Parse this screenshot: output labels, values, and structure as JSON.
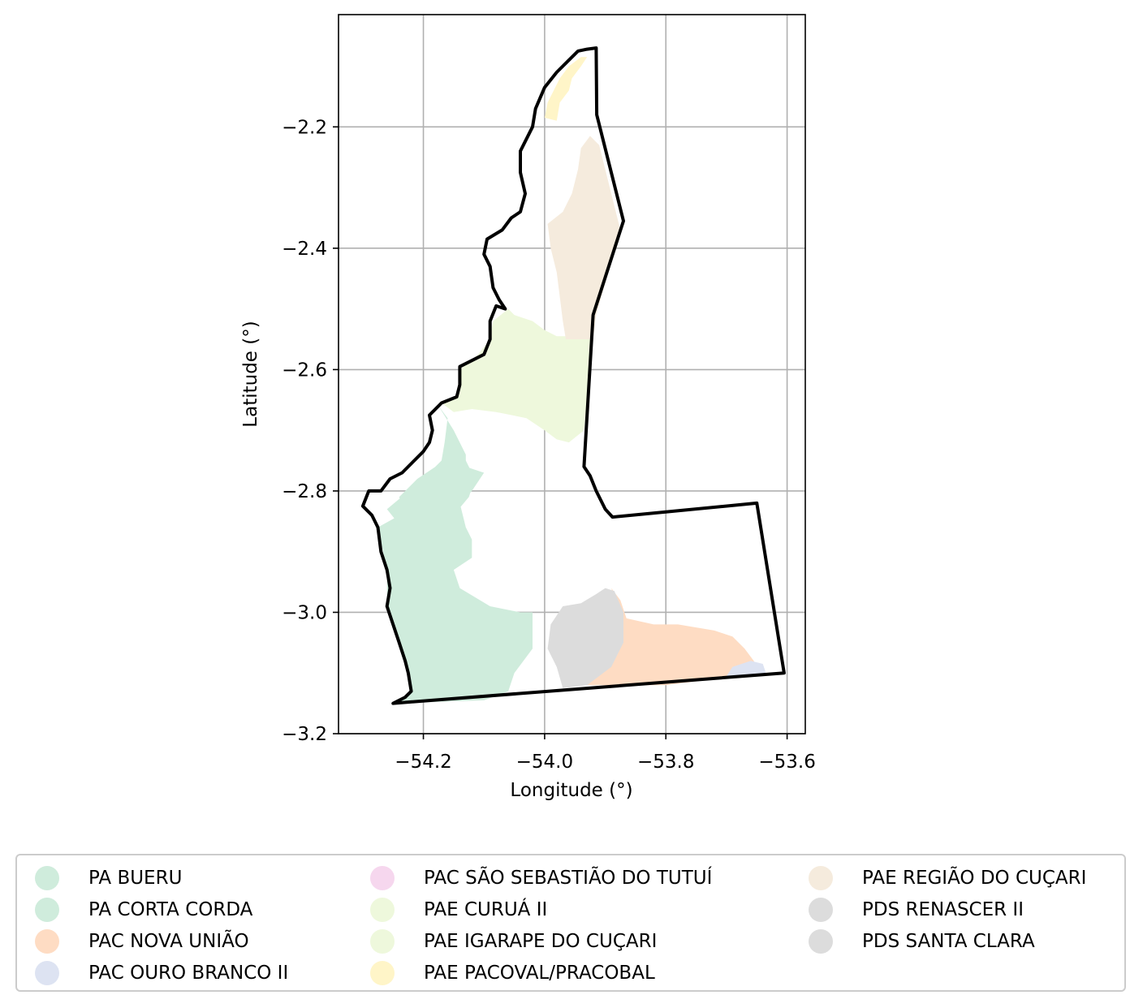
{
  "chart_data": {
    "type": "map",
    "xlabel": "Longitude (°)",
    "ylabel": "Latitude (°)",
    "xlim": [
      -54.34,
      -53.57
    ],
    "ylim": [
      -3.2,
      -2.015
    ],
    "xticks": [
      -54.2,
      -54.0,
      -53.8,
      -53.6
    ],
    "xtick_labels": [
      "−54.2",
      "−54.0",
      "−53.8",
      "−53.6"
    ],
    "yticks": [
      -2.2,
      -2.4,
      -2.6,
      -2.8,
      -3.0,
      -3.2
    ],
    "ytick_labels": [
      "−2.2",
      "−2.4",
      "−2.6",
      "−2.8",
      "−3.0",
      "−3.2"
    ],
    "grid": true,
    "legend_position": "bottom",
    "boundary_color": "#000000",
    "boundary": [
      [
        -53.915,
        -2.07
      ],
      [
        -53.914,
        -2.18
      ],
      [
        -53.87,
        -2.355
      ],
      [
        -53.92,
        -2.51
      ],
      [
        -53.935,
        -2.76
      ],
      [
        -53.925,
        -2.775
      ],
      [
        -53.915,
        -2.8
      ],
      [
        -53.9,
        -2.83
      ],
      [
        -53.888,
        -2.843
      ],
      [
        -53.65,
        -2.82
      ],
      [
        -53.605,
        -3.1
      ],
      [
        -54.25,
        -3.15
      ],
      [
        -54.23,
        -3.14
      ],
      [
        -54.22,
        -3.13
      ],
      [
        -54.225,
        -3.1
      ],
      [
        -54.23,
        -3.08
      ],
      [
        -54.24,
        -3.05
      ],
      [
        -54.26,
        -2.99
      ],
      [
        -54.255,
        -2.96
      ],
      [
        -54.26,
        -2.93
      ],
      [
        -54.27,
        -2.9
      ],
      [
        -54.275,
        -2.86
      ],
      [
        -54.285,
        -2.84
      ],
      [
        -54.3,
        -2.825
      ],
      [
        -54.29,
        -2.8
      ],
      [
        -54.27,
        -2.8
      ],
      [
        -54.255,
        -2.78
      ],
      [
        -54.235,
        -2.77
      ],
      [
        -54.215,
        -2.75
      ],
      [
        -54.2,
        -2.735
      ],
      [
        -54.19,
        -2.72
      ],
      [
        -54.185,
        -2.7
      ],
      [
        -54.19,
        -2.675
      ],
      [
        -54.17,
        -2.655
      ],
      [
        -54.145,
        -2.645
      ],
      [
        -54.14,
        -2.625
      ],
      [
        -54.14,
        -2.595
      ],
      [
        -54.12,
        -2.585
      ],
      [
        -54.1,
        -2.575
      ],
      [
        -54.09,
        -2.55
      ],
      [
        -54.09,
        -2.52
      ],
      [
        -54.08,
        -2.495
      ],
      [
        -54.065,
        -2.5
      ],
      [
        -54.075,
        -2.485
      ],
      [
        -54.085,
        -2.465
      ],
      [
        -54.09,
        -2.43
      ],
      [
        -54.1,
        -2.41
      ],
      [
        -54.095,
        -2.385
      ],
      [
        -54.07,
        -2.37
      ],
      [
        -54.055,
        -2.35
      ],
      [
        -54.04,
        -2.34
      ],
      [
        -54.032,
        -2.31
      ],
      [
        -54.04,
        -2.275
      ],
      [
        -54.04,
        -2.24
      ],
      [
        -54.02,
        -2.2
      ],
      [
        -54.015,
        -2.17
      ],
      [
        -54.0,
        -2.135
      ],
      [
        -53.98,
        -2.11
      ],
      [
        -53.96,
        -2.09
      ],
      [
        -53.945,
        -2.075
      ],
      [
        -53.93,
        -2.072
      ],
      [
        -53.915,
        -2.07
      ]
    ],
    "regions": [
      {
        "name": "PA BUERU",
        "color": "#cfecdc",
        "coords": [
          [
            -54.23,
            -2.835
          ],
          [
            -54.24,
            -2.81
          ],
          [
            -54.21,
            -2.78
          ],
          [
            -54.18,
            -2.76
          ],
          [
            -54.16,
            -2.74
          ],
          [
            -54.14,
            -2.73
          ],
          [
            -54.115,
            -2.78
          ],
          [
            -54.125,
            -2.81
          ],
          [
            -54.15,
            -2.84
          ],
          [
            -54.17,
            -2.87
          ],
          [
            -54.175,
            -2.925
          ],
          [
            -54.18,
            -2.975
          ],
          [
            -54.16,
            -3.0
          ],
          [
            -54.13,
            -3.03
          ],
          [
            -54.1,
            -3.06
          ],
          [
            -54.07,
            -3.08
          ],
          [
            -54.05,
            -3.1
          ],
          [
            -54.06,
            -3.13
          ],
          [
            -54.1,
            -3.145
          ],
          [
            -54.245,
            -3.15
          ],
          [
            -54.22,
            -3.13
          ],
          [
            -54.225,
            -3.1
          ],
          [
            -54.24,
            -3.05
          ],
          [
            -54.26,
            -2.99
          ],
          [
            -54.26,
            -2.93
          ],
          [
            -54.275,
            -2.86
          ],
          [
            -54.23,
            -2.835
          ]
        ]
      },
      {
        "name": "PA CORTA CORDA",
        "color": "#cfecdc",
        "coords": [
          [
            -54.26,
            -2.83
          ],
          [
            -54.2,
            -2.78
          ],
          [
            -54.17,
            -2.75
          ],
          [
            -54.165,
            -2.72
          ],
          [
            -54.16,
            -2.68
          ],
          [
            -54.175,
            -2.66
          ],
          [
            -54.15,
            -2.7
          ],
          [
            -54.13,
            -2.74
          ],
          [
            -54.13,
            -2.76
          ],
          [
            -54.1,
            -2.77
          ],
          [
            -54.12,
            -2.8
          ],
          [
            -54.14,
            -2.82
          ],
          [
            -54.13,
            -2.86
          ],
          [
            -54.12,
            -2.88
          ],
          [
            -54.12,
            -2.91
          ],
          [
            -54.15,
            -2.93
          ],
          [
            -54.14,
            -2.96
          ],
          [
            -54.09,
            -2.99
          ],
          [
            -54.04,
            -3.0
          ],
          [
            -54.02,
            -3.0
          ],
          [
            -54.02,
            -3.06
          ],
          [
            -54.05,
            -3.1
          ],
          [
            -54.1,
            -3.145
          ],
          [
            -54.17,
            -3.1
          ],
          [
            -54.18,
            -2.98
          ],
          [
            -54.2,
            -2.92
          ],
          [
            -54.22,
            -2.88
          ],
          [
            -54.26,
            -2.83
          ]
        ]
      },
      {
        "name": "PAC NOVA UNIÃO",
        "color": "#fedcc3",
        "coords": [
          [
            -53.89,
            -2.96
          ],
          [
            -53.875,
            -2.98
          ],
          [
            -53.865,
            -3.01
          ],
          [
            -53.82,
            -3.02
          ],
          [
            -53.78,
            -3.02
          ],
          [
            -53.72,
            -3.03
          ],
          [
            -53.69,
            -3.04
          ],
          [
            -53.67,
            -3.06
          ],
          [
            -53.655,
            -3.08
          ],
          [
            -53.65,
            -3.09
          ],
          [
            -53.68,
            -3.105
          ],
          [
            -53.72,
            -3.11
          ],
          [
            -53.8,
            -3.12
          ],
          [
            -53.85,
            -3.12
          ],
          [
            -53.89,
            -3.12
          ],
          [
            -53.93,
            -3.12
          ],
          [
            -53.91,
            -3.1
          ],
          [
            -53.88,
            -3.07
          ],
          [
            -53.87,
            -3.02
          ],
          [
            -53.89,
            -2.96
          ]
        ]
      },
      {
        "name": "PAC OURO BRANCO II",
        "color": "#dde3f2",
        "coords": [
          [
            -53.69,
            -3.09
          ],
          [
            -53.66,
            -3.08
          ],
          [
            -53.64,
            -3.085
          ],
          [
            -53.635,
            -3.1
          ],
          [
            -53.7,
            -3.105
          ],
          [
            -53.69,
            -3.09
          ]
        ]
      },
      {
        "name": "PAC SÃO SEBASTIÃO DO TUTUÍ",
        "color": "#f6d7ee",
        "coords": []
      },
      {
        "name": "PAE CURUÁ II",
        "color": "#eef8dc",
        "coords": [
          [
            -54.17,
            -2.655
          ],
          [
            -54.145,
            -2.645
          ],
          [
            -54.14,
            -2.6
          ],
          [
            -54.11,
            -2.575
          ],
          [
            -54.09,
            -2.55
          ],
          [
            -54.085,
            -2.52
          ],
          [
            -54.06,
            -2.5
          ],
          [
            -54.05,
            -2.51
          ],
          [
            -54.02,
            -2.52
          ],
          [
            -54.0,
            -2.535
          ],
          [
            -53.98,
            -2.545
          ],
          [
            -53.92,
            -2.545
          ],
          [
            -53.935,
            -2.7
          ],
          [
            -53.96,
            -2.72
          ],
          [
            -53.98,
            -2.715
          ],
          [
            -54.0,
            -2.7
          ],
          [
            -54.03,
            -2.68
          ],
          [
            -54.08,
            -2.67
          ],
          [
            -54.12,
            -2.665
          ],
          [
            -54.15,
            -2.67
          ],
          [
            -54.17,
            -2.655
          ]
        ]
      },
      {
        "name": "PAE IGARAPE DO CUÇARI",
        "color": "#eef8dc",
        "coords": []
      },
      {
        "name": "PAE PACOVAL/PRACOBAL",
        "color": "#fff5c8",
        "coords": [
          [
            -53.94,
            -2.085
          ],
          [
            -53.96,
            -2.1
          ],
          [
            -53.975,
            -2.12
          ],
          [
            -53.985,
            -2.14
          ],
          [
            -53.995,
            -2.16
          ],
          [
            -54.0,
            -2.185
          ],
          [
            -53.98,
            -2.19
          ],
          [
            -53.975,
            -2.16
          ],
          [
            -53.96,
            -2.14
          ],
          [
            -53.955,
            -2.12
          ],
          [
            -53.94,
            -2.1
          ],
          [
            -53.93,
            -2.085
          ],
          [
            -53.94,
            -2.085
          ]
        ]
      },
      {
        "name": "PAE REGIÃO DO CUÇARI",
        "color": "#f5ebdd",
        "coords": [
          [
            -53.875,
            -2.37
          ],
          [
            -53.91,
            -2.23
          ],
          [
            -53.925,
            -2.215
          ],
          [
            -53.94,
            -2.235
          ],
          [
            -53.945,
            -2.27
          ],
          [
            -53.955,
            -2.31
          ],
          [
            -53.97,
            -2.34
          ],
          [
            -53.995,
            -2.36
          ],
          [
            -53.99,
            -2.4
          ],
          [
            -53.98,
            -2.44
          ],
          [
            -53.975,
            -2.48
          ],
          [
            -53.97,
            -2.52
          ],
          [
            -53.965,
            -2.55
          ],
          [
            -53.92,
            -2.55
          ],
          [
            -53.915,
            -2.51
          ],
          [
            -53.875,
            -2.37
          ]
        ]
      },
      {
        "name": "PDS RENASCER II",
        "color": "#dcdcdc",
        "coords": [
          [
            -53.97,
            -2.99
          ],
          [
            -53.94,
            -2.985
          ],
          [
            -53.915,
            -2.97
          ],
          [
            -53.9,
            -2.96
          ],
          [
            -53.885,
            -2.965
          ],
          [
            -53.87,
            -3.0
          ],
          [
            -53.87,
            -3.05
          ],
          [
            -53.89,
            -3.09
          ],
          [
            -53.93,
            -3.12
          ],
          [
            -53.97,
            -3.125
          ],
          [
            -53.98,
            -3.09
          ],
          [
            -53.995,
            -3.06
          ],
          [
            -53.99,
            -3.02
          ],
          [
            -53.97,
            -2.99
          ]
        ]
      },
      {
        "name": "PDS SANTA CLARA",
        "color": "#dcdcdc",
        "coords": []
      }
    ],
    "legend_columns": [
      [
        "PA BUERU",
        "PA CORTA CORDA",
        "PAC NOVA UNIÃO",
        "PAC OURO BRANCO II"
      ],
      [
        "PAC SÃO SEBASTIÃO DO TUTUÍ",
        "PAE CURUÁ II",
        "PAE IGARAPE DO CUÇARI",
        "PAE PACOVAL/PRACOBAL"
      ],
      [
        "PAE REGIÃO DO CUÇARI",
        "PDS RENASCER II",
        "PDS SANTA CLARA"
      ]
    ]
  }
}
